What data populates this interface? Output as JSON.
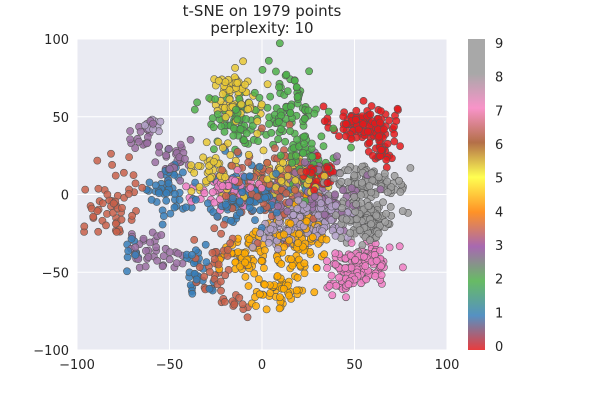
{
  "chart_data": {
    "type": "scatter",
    "title_lines": [
      "t-SNE on 1979 points",
      "perplexity: 10"
    ],
    "xlim": [
      -100,
      100
    ],
    "ylim": [
      -100,
      100
    ],
    "xticks": [
      "-100",
      "-50",
      "0",
      "50",
      "100"
    ],
    "yticks": [
      "100",
      "50",
      "0",
      "-50",
      "-100"
    ],
    "grid": true,
    "background": "#e9eaf2",
    "point_edge_color": "#555555",
    "colorbar": {
      "ticks": [
        "0",
        "1",
        "2",
        "3",
        "4",
        "5",
        "6",
        "7",
        "8",
        "9"
      ],
      "colors": [
        "#e41a1c",
        "#377eb8",
        "#4daf4a",
        "#984ea3",
        "#ff7f00",
        "#ffff33",
        "#a65628",
        "#f781bf",
        "#999999",
        "#999999"
      ]
    },
    "classes": [
      {
        "label": "0",
        "color": "#e41a1c",
        "approx_points": 198,
        "clusters": [
          {
            "x": 55,
            "y": 45,
            "sx": 9,
            "sy": 6
          },
          {
            "x": 65,
            "y": 28,
            "sx": 3,
            "sy": 4
          },
          {
            "x": 30,
            "y": 12,
            "sx": 5,
            "sy": 5
          }
        ]
      },
      {
        "label": "1",
        "color": "#377eb8",
        "approx_points": 198,
        "clusters": [
          {
            "x": -50,
            "y": 2,
            "sx": 5,
            "sy": 10
          },
          {
            "x": -70,
            "y": -38,
            "sx": 2,
            "sy": 5
          },
          {
            "x": -35,
            "y": -48,
            "sx": 4,
            "sy": 8
          },
          {
            "x": -7,
            "y": 0,
            "sx": 12,
            "sy": 10
          }
        ]
      },
      {
        "label": "2",
        "color": "#4daf4a",
        "approx_points": 198,
        "clusters": [
          {
            "x": -12,
            "y": 45,
            "sx": 9,
            "sy": 9
          },
          {
            "x": 15,
            "y": 55,
            "sx": 8,
            "sy": 14
          },
          {
            "x": 25,
            "y": 22,
            "sx": 8,
            "sy": 8
          }
        ]
      },
      {
        "label": "3",
        "color": "#9a6ea2",
        "approx_points": 198,
        "clusters": [
          {
            "x": -60,
            "y": -35,
            "sx": 8,
            "sy": 6
          },
          {
            "x": -47,
            "y": 20,
            "sx": 6,
            "sy": 6
          },
          {
            "x": -65,
            "y": 38,
            "sx": 4,
            "sy": 6
          },
          {
            "x": 30,
            "y": 0,
            "sx": 12,
            "sy": 12
          }
        ]
      },
      {
        "label": "4",
        "color": "#ffaa00",
        "approx_points": 198,
        "clusters": [
          {
            "x": 20,
            "y": -30,
            "sx": 8,
            "sy": 10
          },
          {
            "x": 10,
            "y": -62,
            "sx": 7,
            "sy": 6
          },
          {
            "x": -10,
            "y": -40,
            "sx": 7,
            "sy": 7
          }
        ]
      },
      {
        "label": "5",
        "color": "#e8c836",
        "approx_points": 198,
        "clusters": [
          {
            "x": -15,
            "y": 62,
            "sx": 7,
            "sy": 10
          },
          {
            "x": -25,
            "y": 18,
            "sx": 6,
            "sy": 7
          },
          {
            "x": 15,
            "y": 12,
            "sx": 10,
            "sy": 8
          }
        ]
      },
      {
        "label": "6",
        "color": "#c8604a",
        "approx_points": 198,
        "clusters": [
          {
            "x": -80,
            "y": -5,
            "sx": 8,
            "sy": 12
          },
          {
            "x": -25,
            "y": -45,
            "sx": 6,
            "sy": 10
          },
          {
            "x": -15,
            "y": -70,
            "sx": 5,
            "sy": 5
          },
          {
            "x": 5,
            "y": 5,
            "sx": 15,
            "sy": 12
          }
        ]
      },
      {
        "label": "7",
        "color": "#f07ec4",
        "approx_points": 198,
        "clusters": [
          {
            "x": 45,
            "y": -50,
            "sx": 5,
            "sy": 7
          },
          {
            "x": 60,
            "y": -42,
            "sx": 6,
            "sy": 6
          },
          {
            "x": -20,
            "y": 2,
            "sx": 8,
            "sy": 5
          }
        ]
      },
      {
        "label": "8",
        "color": "#9e9e9e",
        "approx_points": 198,
        "clusters": [
          {
            "x": 55,
            "y": 10,
            "sx": 8,
            "sy": 5
          },
          {
            "x": 55,
            "y": -15,
            "sx": 9,
            "sy": 10
          },
          {
            "x": 70,
            "y": 5,
            "sx": 3,
            "sy": 4
          }
        ]
      },
      {
        "label": "9",
        "color": "#b3a0c8",
        "approx_points": 197,
        "clusters": [
          {
            "x": -60,
            "y": 45,
            "sx": 3,
            "sy": 3
          },
          {
            "x": 30,
            "y": -15,
            "sx": 10,
            "sy": 8
          },
          {
            "x": 10,
            "y": -25,
            "sx": 8,
            "sy": 5
          }
        ]
      }
    ]
  }
}
